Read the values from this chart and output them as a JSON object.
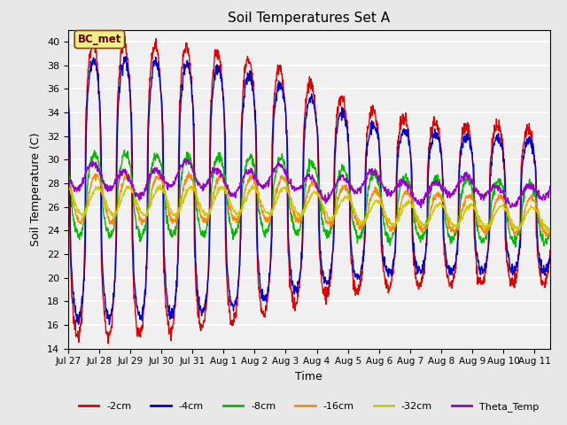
{
  "title": "Soil Temperatures Set A",
  "xlabel": "Time",
  "ylabel": "Soil Temperature (C)",
  "ylim": [
    14,
    41
  ],
  "yticks": [
    14,
    16,
    18,
    20,
    22,
    24,
    26,
    28,
    30,
    32,
    34,
    36,
    38,
    40
  ],
  "xlim": [
    0,
    15.5
  ],
  "tick_positions": [
    0,
    1,
    2,
    3,
    4,
    5,
    6,
    7,
    8,
    9,
    10,
    11,
    12,
    13,
    14,
    15
  ],
  "tick_labels": [
    "Jul 27",
    "Jul 28",
    "Jul 29",
    "Jul 30",
    "Jul 31",
    "Aug 1",
    "Aug 2",
    "Aug 3",
    "Aug 4",
    "Aug 5",
    "Aug 6",
    "Aug 7",
    "Aug 8",
    "Aug 9",
    "Aug 10",
    "Aug 11"
  ],
  "background_color": "#e8e8e8",
  "plot_bg_color": "#f0f0f0",
  "legend_labels": [
    "-2cm",
    "-4cm",
    "-8cm",
    "-16cm",
    "-32cm",
    "Theta_Temp"
  ],
  "legend_colors": [
    "#dd0000",
    "#0000cc",
    "#00bb00",
    "#ff8800",
    "#cccc00",
    "#9900cc"
  ],
  "annotation_text": "BC_met",
  "figsize": [
    6.4,
    4.8
  ],
  "dpi": 100
}
